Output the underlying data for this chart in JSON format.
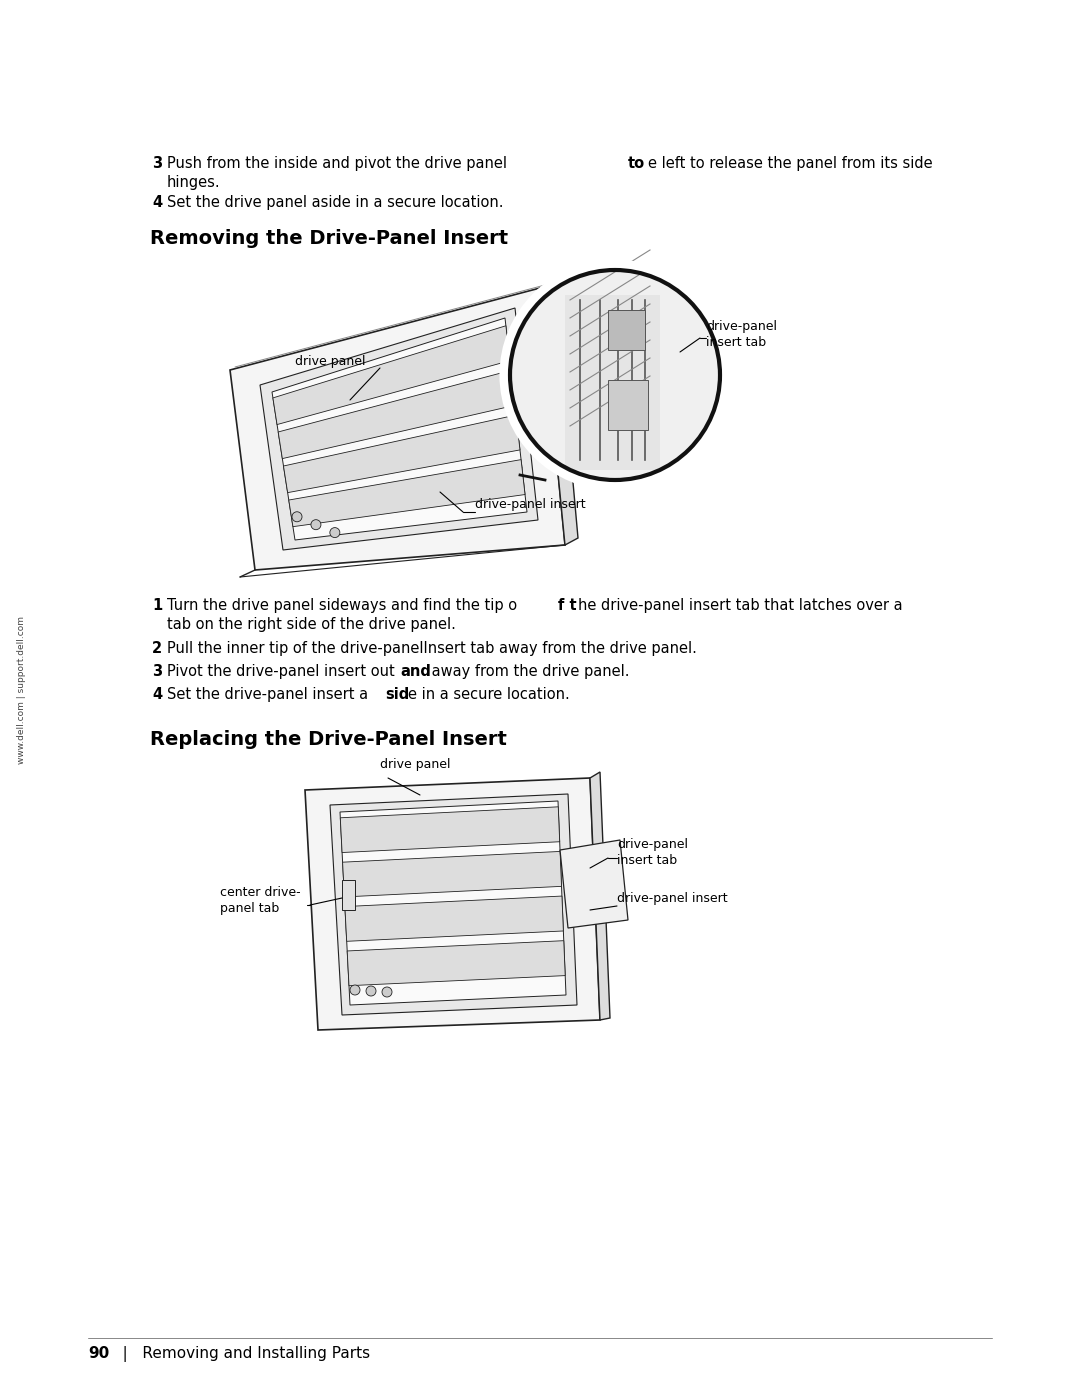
{
  "bg_color": "#ffffff",
  "text_color": "#000000",
  "page_width": 10.8,
  "page_height": 13.97,
  "sidebar_text": "www.dell.com | support.dell.com",
  "step3_bold": "3",
  "step3_text": "  Push from the inside and pivot the drive panel ",
  "step3_bold2": "to",
  "step3_text2": " the left to release the panel from its side",
  "step3_line2": "    hinges.",
  "step4_bold": "4",
  "step4_text": "  Set the drive panel aside in a secure location.",
  "section1_title": "Removing the Drive-Panel Insert",
  "section2_title": "Replacing the Drive-Panel Insert",
  "step1r_bold": "1",
  "step1r_text": "  Turn the drive panel sideways and find the tip o",
  "step1r_bold2": "f t",
  "step1r_text2": "he drive-panel insert tab that latches over a",
  "step1r_line2": "    tab on the right side of the drive panel.",
  "step2r_bold": "2",
  "step2r_text": "  Pull the inner tip of the drive-panelInsert tab away from the drive panel.",
  "step3r_bold": "3",
  "step3r_text": "  Pivot the drive-panel insert out",
  "step3r_bold2": "and",
  "step3r_text2": " away from the drive panel.",
  "step4r_bold": "4",
  "step4r_text": "  Set the drive-panel insert a",
  "step4r_bold2": "sid",
  "step4r_text2": "e in a secure location.",
  "footer_bold": "90",
  "footer_text": "   |   Removing and Installing Parts",
  "label_drive_panel_1": "drive panel",
  "label_insert_tab_1a": "drive-panel",
  "label_insert_tab_1b": "insert tab",
  "label_insert_1": "drive-panel insert",
  "label_drive_panel_2": "drive panel",
  "label_insert_tab_2a": "drive-panel",
  "label_insert_tab_2b": "insert tab",
  "label_center_tab_a": "center drive-",
  "label_center_tab_b": "panel tab",
  "label_insert_2": "drive-panel insert"
}
